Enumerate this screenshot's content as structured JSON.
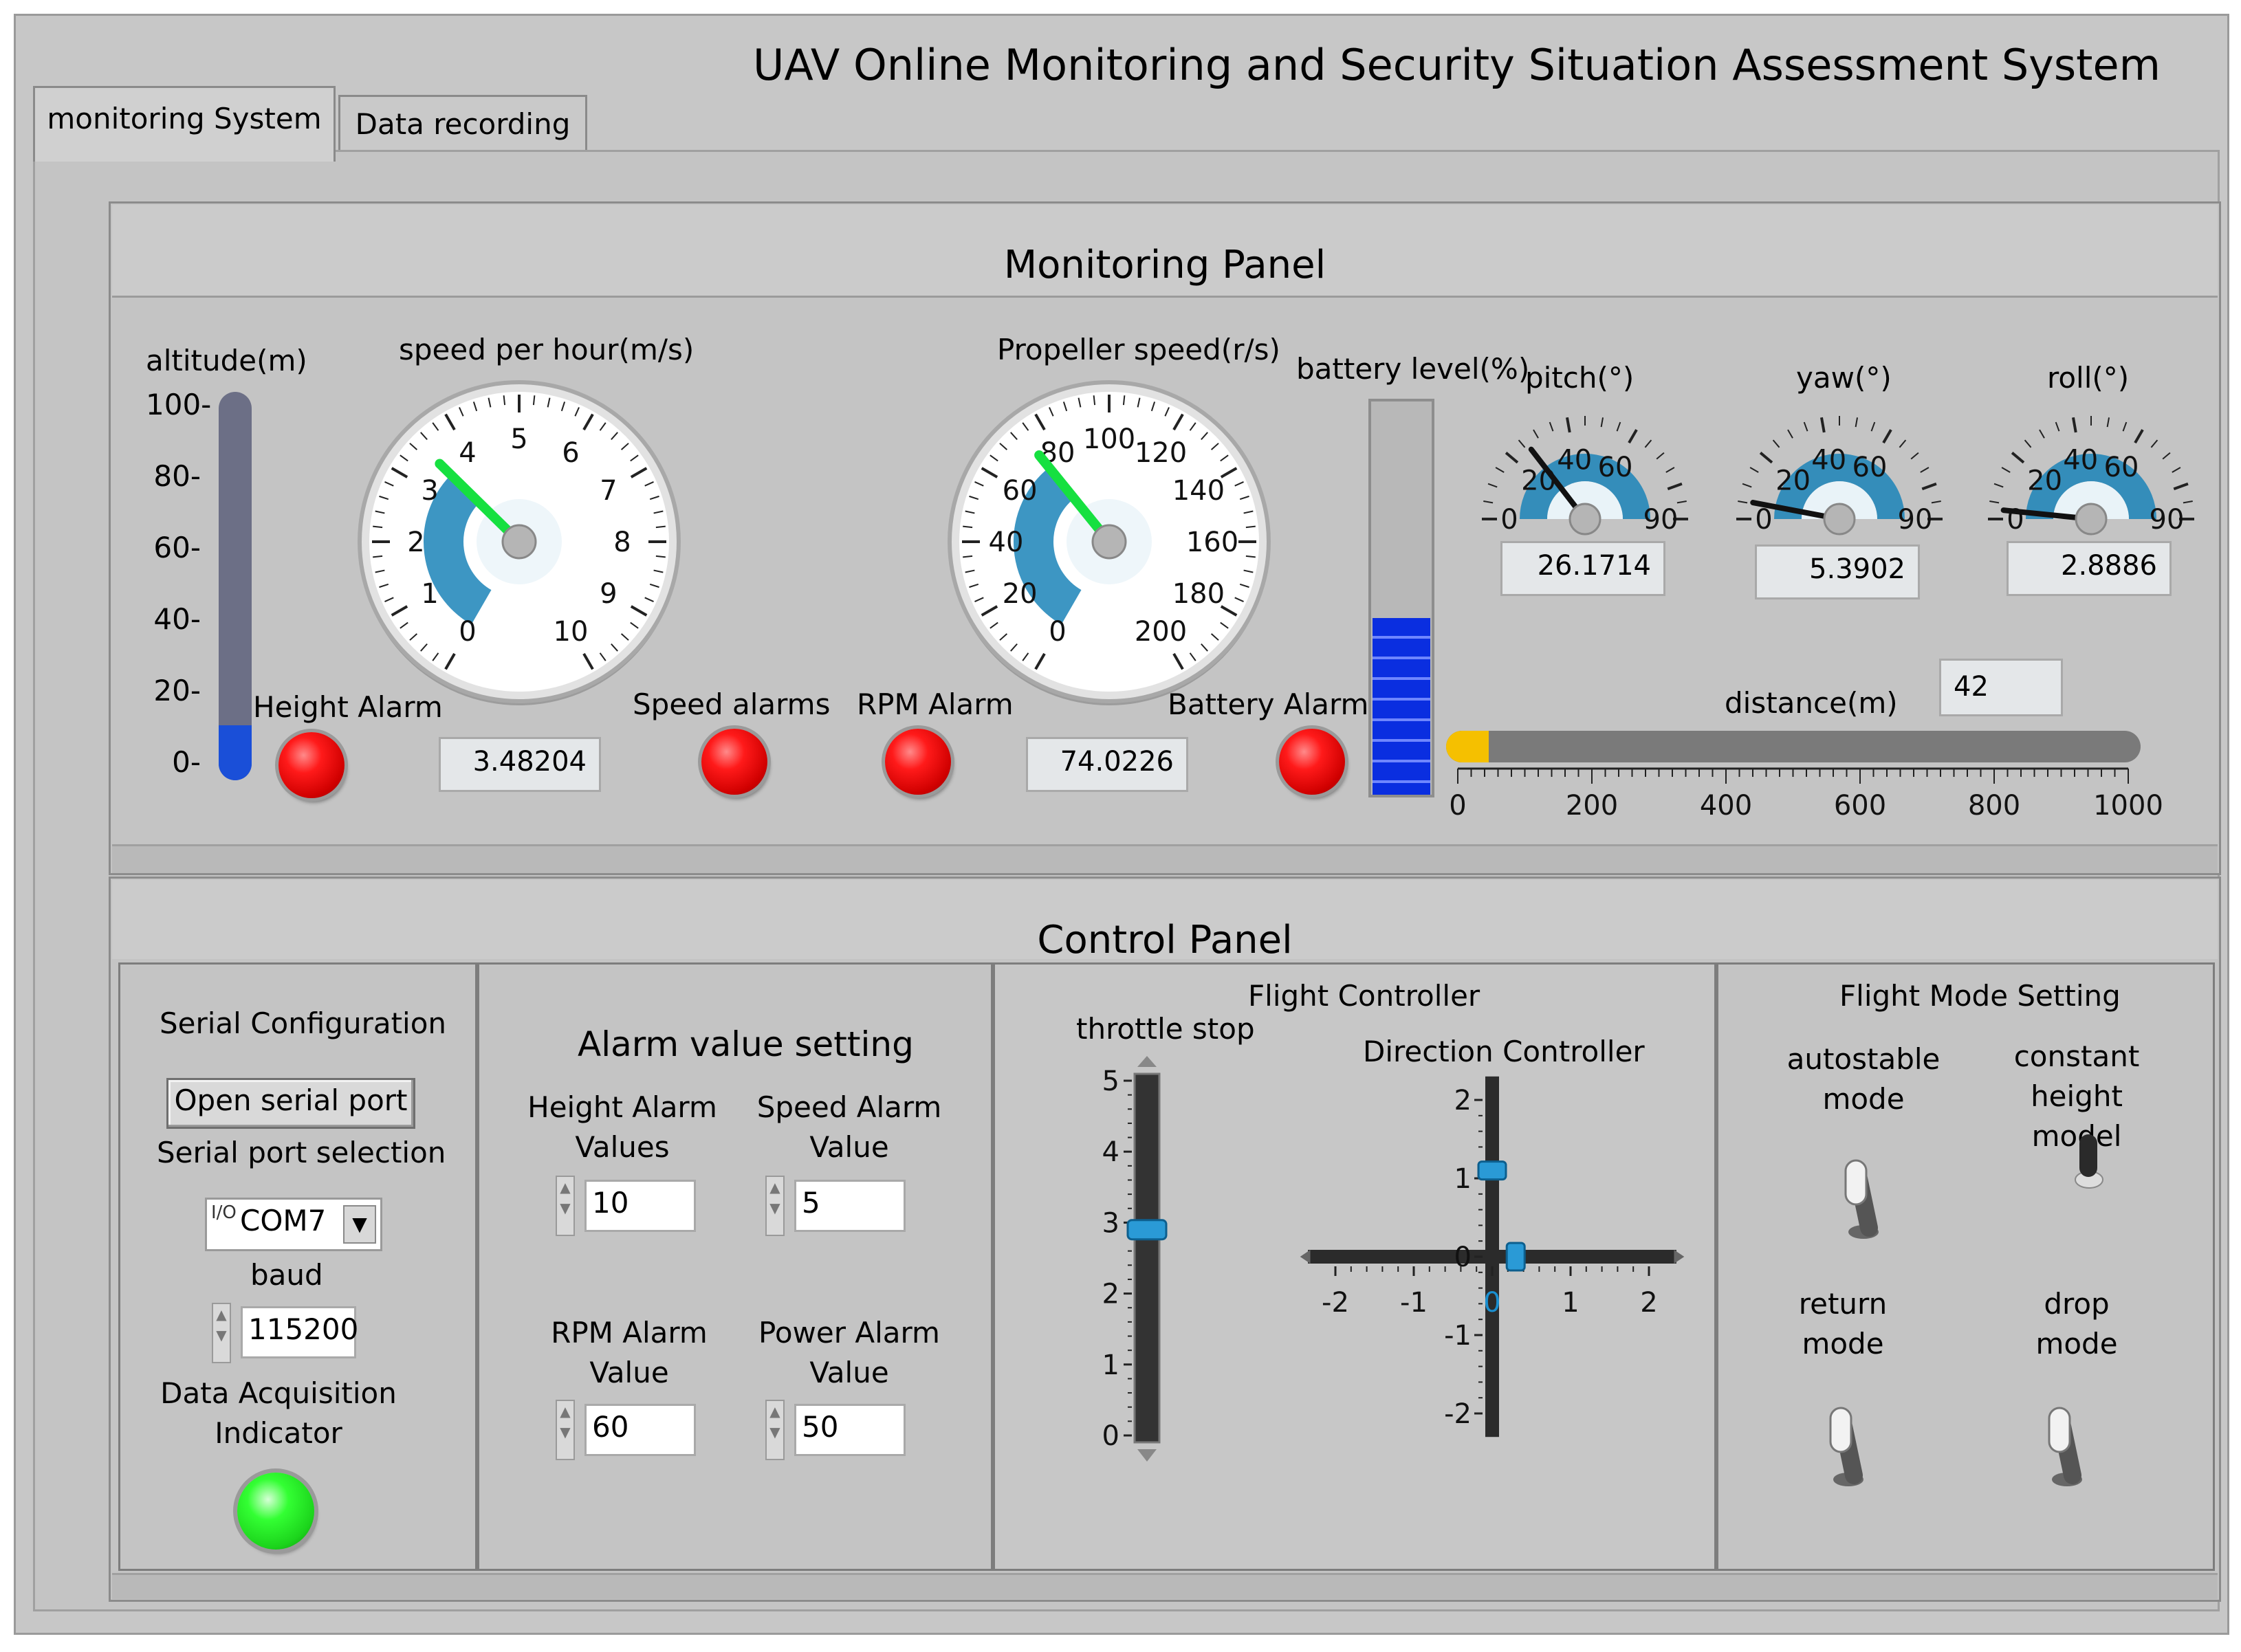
{
  "app": {
    "title": "UAV Online Monitoring and Security Situation Assessment System"
  },
  "tabs": [
    {
      "label": "monitoring System",
      "active": true
    },
    {
      "label": "Data recording",
      "active": false
    }
  ],
  "monitoring": {
    "title": "Monitoring Panel",
    "altitude": {
      "label": "altitude(m)",
      "value": 3.48204,
      "min": 0,
      "max": 100,
      "ticks": [
        "100",
        "80",
        "60",
        "40",
        "20",
        "0"
      ]
    },
    "speed": {
      "label": "speed per hour(m/s)",
      "value": 3.48204,
      "readout": "3.48204",
      "min": 0,
      "max": 10,
      "ticks": [
        "0",
        "1",
        "2",
        "3",
        "4",
        "5",
        "6",
        "7",
        "8",
        "9",
        "10"
      ]
    },
    "propeller": {
      "label": "Propeller speed(r/s)",
      "value": 74.0226,
      "readout": "74.0226",
      "min": 0,
      "max": 200,
      "ticks": [
        "0",
        "20",
        "40",
        "60",
        "80",
        "100",
        "120",
        "140",
        "160",
        "180",
        "200"
      ]
    },
    "battery": {
      "label": "battery level(%)",
      "value": 45
    },
    "pitch": {
      "label": "pitch(°)",
      "value": 26.1714,
      "readout": "26.1714"
    },
    "yaw": {
      "label": "yaw(°)",
      "value": 5.3902,
      "readout": "5.3902"
    },
    "roll": {
      "label": "roll(°)",
      "value": 2.8886,
      "readout": "2.8886"
    },
    "small_gauge_ticks": [
      "0",
      "20",
      "40",
      "60",
      "90"
    ],
    "distance": {
      "label": "distance(m)",
      "value": 42,
      "readout": "42",
      "min": 0,
      "max": 1000,
      "ticks": [
        "0",
        "200",
        "400",
        "600",
        "800",
        "1000"
      ]
    },
    "alarms": {
      "height": "Height Alarm",
      "speed": "Speed alarms",
      "rpm": "RPM Alarm",
      "battery": "Battery Alarm"
    },
    "colors": {
      "alarm_led": "#ff0000",
      "altitude_fill": "#1a4fd8",
      "battery_fill": "#0a2ee0",
      "distance_fill": "#f5c000",
      "gauge_arc": "#1b84b8",
      "needle": "#16e040"
    }
  },
  "control": {
    "title": "Control Panel",
    "serial": {
      "title": "Serial Configuration",
      "open_button": "Open serial port",
      "port_label": "Serial port selection",
      "port_prefix": "I/O",
      "port_value": "COM7",
      "baud_label": "baud",
      "baud_value": "115200",
      "acq_label_1": "Data Acquisition",
      "acq_label_2": "Indicator"
    },
    "alarm_setting": {
      "title": "Alarm value setting",
      "height_l1": "Height Alarm",
      "height_l2": "Values",
      "height_value": "10",
      "speed_l1": "Speed Alarm",
      "speed_l2": "Value",
      "speed_value": "5",
      "rpm_l1": "RPM Alarm",
      "rpm_l2": "Value",
      "rpm_value": "60",
      "power_l1": "Power Alarm",
      "power_l2": "Value",
      "power_value": "50"
    },
    "flight": {
      "title": "Flight Controller",
      "throttle_label": "throttle stop",
      "throttle_value": 2.9,
      "throttle_ticks": [
        "5",
        "4",
        "3",
        "2",
        "1",
        "0"
      ],
      "direction_label": "Direction Controller",
      "direction_x": 0.3,
      "direction_y": 1.1,
      "x_ticks": [
        "-2",
        "-1",
        "0",
        "1",
        "2"
      ],
      "y_ticks": [
        "2",
        "1",
        "0",
        "-1",
        "-2"
      ]
    },
    "mode": {
      "title": "Flight Mode Setting",
      "autostable_l1": "autostable",
      "autostable_l2": "mode",
      "constant_l1": "constant height",
      "constant_l2": "model",
      "return_l1": "return",
      "return_l2": "mode",
      "drop_l1": "drop",
      "drop_l2": "mode"
    }
  }
}
